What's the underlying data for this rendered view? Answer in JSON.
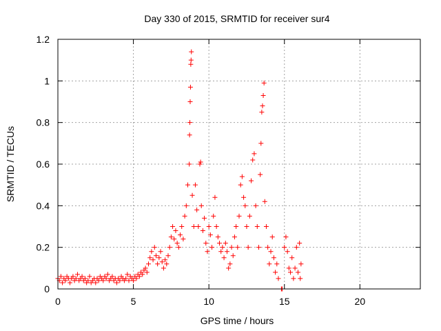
{
  "chart_data": {
    "type": "scatter",
    "title": "Day 330 of 2015, SRMTID for receiver sur4",
    "xlabel": "GPS time / hours",
    "ylabel": "SRMTID / TECUs",
    "xlim": [
      0,
      24
    ],
    "ylim": [
      0,
      1.2
    ],
    "xticks": [
      0,
      5,
      10,
      15,
      20
    ],
    "xtick_labels": [
      "0",
      "5",
      "10",
      "15",
      "20"
    ],
    "yticks": [
      0,
      0.2,
      0.4,
      0.6,
      0.8,
      1,
      1.2
    ],
    "ytick_labels": [
      "0",
      "0.2",
      "0.4",
      "0.6",
      "0.8",
      "1",
      "1.2"
    ],
    "grid": true,
    "marker": "plus",
    "color": "#ff0000",
    "series": [
      {
        "name": "SRMTID",
        "points": [
          [
            0.0,
            0.05
          ],
          [
            0.1,
            0.04
          ],
          [
            0.2,
            0.06
          ],
          [
            0.3,
            0.03
          ],
          [
            0.4,
            0.05
          ],
          [
            0.5,
            0.04
          ],
          [
            0.6,
            0.06
          ],
          [
            0.7,
            0.05
          ],
          [
            0.8,
            0.03
          ],
          [
            0.9,
            0.05
          ],
          [
            1.0,
            0.06
          ],
          [
            1.1,
            0.04
          ],
          [
            1.2,
            0.05
          ],
          [
            1.3,
            0.07
          ],
          [
            1.4,
            0.04
          ],
          [
            1.5,
            0.05
          ],
          [
            1.6,
            0.06
          ],
          [
            1.7,
            0.04
          ],
          [
            1.8,
            0.05
          ],
          [
            1.9,
            0.03
          ],
          [
            2.0,
            0.04
          ],
          [
            2.1,
            0.06
          ],
          [
            2.2,
            0.03
          ],
          [
            2.3,
            0.04
          ],
          [
            2.4,
            0.05
          ],
          [
            2.5,
            0.03
          ],
          [
            2.6,
            0.05
          ],
          [
            2.7,
            0.04
          ],
          [
            2.8,
            0.06
          ],
          [
            2.9,
            0.05
          ],
          [
            3.0,
            0.04
          ],
          [
            3.1,
            0.06
          ],
          [
            3.2,
            0.05
          ],
          [
            3.3,
            0.07
          ],
          [
            3.4,
            0.04
          ],
          [
            3.5,
            0.05
          ],
          [
            3.6,
            0.06
          ],
          [
            3.7,
            0.04
          ],
          [
            3.8,
            0.05
          ],
          [
            3.9,
            0.03
          ],
          [
            4.0,
            0.05
          ],
          [
            4.1,
            0.04
          ],
          [
            4.2,
            0.06
          ],
          [
            4.3,
            0.05
          ],
          [
            4.4,
            0.04
          ],
          [
            4.5,
            0.05
          ],
          [
            4.6,
            0.07
          ],
          [
            4.7,
            0.04
          ],
          [
            4.8,
            0.06
          ],
          [
            4.9,
            0.05
          ],
          [
            5.0,
            0.04
          ],
          [
            5.1,
            0.06
          ],
          [
            5.2,
            0.05
          ],
          [
            5.3,
            0.07
          ],
          [
            5.4,
            0.06
          ],
          [
            5.5,
            0.08
          ],
          [
            5.6,
            0.07
          ],
          [
            5.7,
            0.09
          ],
          [
            5.8,
            0.1
          ],
          [
            5.9,
            0.08
          ],
          [
            6.0,
            0.12
          ],
          [
            6.1,
            0.15
          ],
          [
            6.2,
            0.18
          ],
          [
            6.3,
            0.14
          ],
          [
            6.4,
            0.2
          ],
          [
            6.5,
            0.16
          ],
          [
            6.6,
            0.12
          ],
          [
            6.7,
            0.15
          ],
          [
            6.8,
            0.18
          ],
          [
            6.9,
            0.13
          ],
          [
            7.0,
            0.1
          ],
          [
            7.1,
            0.14
          ],
          [
            7.2,
            0.12
          ],
          [
            7.3,
            0.16
          ],
          [
            7.4,
            0.2
          ],
          [
            7.5,
            0.25
          ],
          [
            7.6,
            0.3
          ],
          [
            7.7,
            0.24
          ],
          [
            7.8,
            0.28
          ],
          [
            7.9,
            0.22
          ],
          [
            8.0,
            0.2
          ],
          [
            8.1,
            0.26
          ],
          [
            8.2,
            0.3
          ],
          [
            8.3,
            0.24
          ],
          [
            8.4,
            0.35
          ],
          [
            8.5,
            0.4
          ],
          [
            8.6,
            0.5
          ],
          [
            8.7,
            0.6
          ],
          [
            8.72,
            0.74
          ],
          [
            8.74,
            0.8
          ],
          [
            8.76,
            0.9
          ],
          [
            8.78,
            0.97
          ],
          [
            8.8,
            1.08
          ],
          [
            8.82,
            1.1
          ],
          [
            8.84,
            1.14
          ],
          [
            8.9,
            0.45
          ],
          [
            9.0,
            0.3
          ],
          [
            9.1,
            0.5
          ],
          [
            9.2,
            0.38
          ],
          [
            9.3,
            0.3
          ],
          [
            9.4,
            0.6
          ],
          [
            9.45,
            0.61
          ],
          [
            9.5,
            0.4
          ],
          [
            9.6,
            0.28
          ],
          [
            9.7,
            0.34
          ],
          [
            9.8,
            0.22
          ],
          [
            9.9,
            0.18
          ],
          [
            10.0,
            0.3
          ],
          [
            10.1,
            0.26
          ],
          [
            10.2,
            0.2
          ],
          [
            10.3,
            0.35
          ],
          [
            10.4,
            0.44
          ],
          [
            10.5,
            0.3
          ],
          [
            10.6,
            0.25
          ],
          [
            10.7,
            0.22
          ],
          [
            10.8,
            0.18
          ],
          [
            10.9,
            0.2
          ],
          [
            11.0,
            0.15
          ],
          [
            11.1,
            0.22
          ],
          [
            11.2,
            0.18
          ],
          [
            11.3,
            0.1
          ],
          [
            11.4,
            0.12
          ],
          [
            11.5,
            0.2
          ],
          [
            11.6,
            0.16
          ],
          [
            11.7,
            0.25
          ],
          [
            11.8,
            0.3
          ],
          [
            11.9,
            0.2
          ],
          [
            12.0,
            0.35
          ],
          [
            12.1,
            0.5
          ],
          [
            12.2,
            0.54
          ],
          [
            12.3,
            0.44
          ],
          [
            12.4,
            0.4
          ],
          [
            12.5,
            0.3
          ],
          [
            12.6,
            0.2
          ],
          [
            12.7,
            0.35
          ],
          [
            12.8,
            0.52
          ],
          [
            12.9,
            0.62
          ],
          [
            13.0,
            0.65
          ],
          [
            13.1,
            0.4
          ],
          [
            13.2,
            0.3
          ],
          [
            13.3,
            0.2
          ],
          [
            13.4,
            0.55
          ],
          [
            13.45,
            0.7
          ],
          [
            13.5,
            0.85
          ],
          [
            13.55,
            0.88
          ],
          [
            13.6,
            0.93
          ],
          [
            13.65,
            0.99
          ],
          [
            13.7,
            0.42
          ],
          [
            13.8,
            0.3
          ],
          [
            13.9,
            0.2
          ],
          [
            14.0,
            0.12
          ],
          [
            14.1,
            0.18
          ],
          [
            14.2,
            0.25
          ],
          [
            14.3,
            0.15
          ],
          [
            14.4,
            0.08
          ],
          [
            14.5,
            0.12
          ],
          [
            14.6,
            0.05
          ],
          [
            14.8,
            0.0
          ],
          [
            14.85,
            0.0
          ],
          [
            15.0,
            0.2
          ],
          [
            15.1,
            0.25
          ],
          [
            15.2,
            0.18
          ],
          [
            15.3,
            0.1
          ],
          [
            15.4,
            0.08
          ],
          [
            15.5,
            0.15
          ],
          [
            15.6,
            0.05
          ],
          [
            15.7,
            0.1
          ],
          [
            15.8,
            0.2
          ],
          [
            15.9,
            0.08
          ],
          [
            16.0,
            0.22
          ],
          [
            16.05,
            0.05
          ],
          [
            16.1,
            0.12
          ]
        ]
      }
    ]
  }
}
